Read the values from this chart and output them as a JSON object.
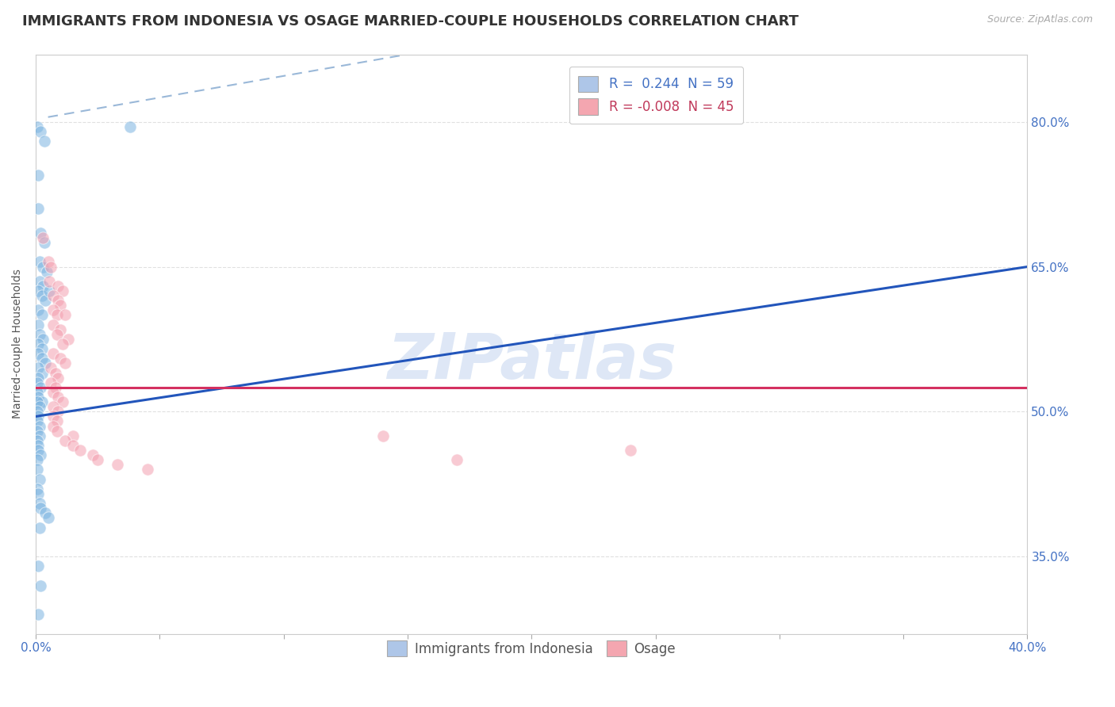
{
  "title": "IMMIGRANTS FROM INDONESIA VS OSAGE MARRIED-COUPLE HOUSEHOLDS CORRELATION CHART",
  "source_text": "Source: ZipAtlas.com",
  "ylabel_ticks": [
    35.0,
    50.0,
    65.0,
    80.0
  ],
  "ylabel_label": "Married-couple Households",
  "legend_entries": [
    {
      "label": "Immigrants from Indonesia",
      "color": "#aec6e8"
    },
    {
      "label": "Osage",
      "color": "#f4a6b0"
    }
  ],
  "legend_r_colors": [
    "#4472c4",
    "#c0395a"
  ],
  "blue_dots": [
    [
      0.05,
      79.5
    ],
    [
      0.2,
      79.0
    ],
    [
      0.35,
      78.0
    ],
    [
      0.1,
      74.5
    ],
    [
      0.1,
      71.0
    ],
    [
      0.2,
      68.5
    ],
    [
      0.35,
      67.5
    ],
    [
      0.15,
      65.5
    ],
    [
      0.3,
      65.0
    ],
    [
      0.45,
      64.5
    ],
    [
      0.15,
      63.5
    ],
    [
      0.3,
      63.0
    ],
    [
      0.1,
      62.5
    ],
    [
      0.25,
      62.0
    ],
    [
      0.4,
      61.5
    ],
    [
      0.55,
      62.5
    ],
    [
      0.1,
      60.5
    ],
    [
      0.25,
      60.0
    ],
    [
      0.1,
      59.0
    ],
    [
      0.15,
      58.0
    ],
    [
      0.3,
      57.5
    ],
    [
      0.1,
      57.0
    ],
    [
      0.25,
      56.5
    ],
    [
      0.1,
      56.0
    ],
    [
      0.25,
      55.5
    ],
    [
      0.4,
      55.0
    ],
    [
      0.1,
      54.5
    ],
    [
      0.25,
      54.0
    ],
    [
      0.1,
      53.5
    ],
    [
      0.05,
      53.0
    ],
    [
      0.2,
      52.5
    ],
    [
      0.05,
      52.0
    ],
    [
      0.1,
      51.5
    ],
    [
      0.25,
      51.0
    ],
    [
      0.05,
      51.0
    ],
    [
      0.15,
      50.5
    ],
    [
      0.05,
      50.0
    ],
    [
      0.1,
      49.5
    ],
    [
      0.05,
      49.0
    ],
    [
      0.15,
      48.5
    ],
    [
      0.05,
      48.0
    ],
    [
      0.15,
      47.5
    ],
    [
      0.05,
      47.0
    ],
    [
      0.1,
      46.5
    ],
    [
      0.1,
      46.0
    ],
    [
      0.2,
      45.5
    ],
    [
      0.05,
      45.0
    ],
    [
      0.05,
      44.0
    ],
    [
      0.15,
      43.0
    ],
    [
      0.05,
      42.0
    ],
    [
      0.1,
      41.5
    ],
    [
      0.15,
      40.5
    ],
    [
      0.2,
      40.0
    ],
    [
      0.4,
      39.5
    ],
    [
      0.5,
      39.0
    ],
    [
      0.15,
      38.0
    ],
    [
      0.1,
      34.0
    ],
    [
      0.2,
      32.0
    ],
    [
      0.1,
      29.0
    ],
    [
      3.8,
      79.5
    ]
  ],
  "pink_dots": [
    [
      0.3,
      68.0
    ],
    [
      0.5,
      65.5
    ],
    [
      0.6,
      65.0
    ],
    [
      0.55,
      63.5
    ],
    [
      0.9,
      63.0
    ],
    [
      1.1,
      62.5
    ],
    [
      0.7,
      62.0
    ],
    [
      0.9,
      61.5
    ],
    [
      1.0,
      61.0
    ],
    [
      0.7,
      60.5
    ],
    [
      0.85,
      60.0
    ],
    [
      1.2,
      60.0
    ],
    [
      0.7,
      59.0
    ],
    [
      1.0,
      58.5
    ],
    [
      0.85,
      58.0
    ],
    [
      1.3,
      57.5
    ],
    [
      1.1,
      57.0
    ],
    [
      0.7,
      56.0
    ],
    [
      1.0,
      55.5
    ],
    [
      1.2,
      55.0
    ],
    [
      0.6,
      54.5
    ],
    [
      0.8,
      54.0
    ],
    [
      0.9,
      53.5
    ],
    [
      0.6,
      53.0
    ],
    [
      0.8,
      52.5
    ],
    [
      0.7,
      52.0
    ],
    [
      0.9,
      51.5
    ],
    [
      1.1,
      51.0
    ],
    [
      0.7,
      50.5
    ],
    [
      0.9,
      50.0
    ],
    [
      0.7,
      49.5
    ],
    [
      0.85,
      49.0
    ],
    [
      0.7,
      48.5
    ],
    [
      0.85,
      48.0
    ],
    [
      1.5,
      47.5
    ],
    [
      1.2,
      47.0
    ],
    [
      1.5,
      46.5
    ],
    [
      1.8,
      46.0
    ],
    [
      2.3,
      45.5
    ],
    [
      2.5,
      45.0
    ],
    [
      3.3,
      44.5
    ],
    [
      4.5,
      44.0
    ],
    [
      17.0,
      45.0
    ],
    [
      24.0,
      46.0
    ],
    [
      14.0,
      47.5
    ]
  ],
  "blue_line_x": [
    0.0,
    40.0
  ],
  "blue_line_y": [
    49.5,
    65.0
  ],
  "pink_line_x": [
    0.0,
    40.0
  ],
  "pink_line_y": [
    52.5,
    52.5
  ],
  "dashed_line_x": [
    0.5,
    15.0
  ],
  "dashed_line_y": [
    80.5,
    87.0
  ],
  "xlim": [
    0.0,
    40.0
  ],
  "ylim": [
    27.0,
    87.0
  ],
  "background_color": "#ffffff",
  "dot_size": 120,
  "dot_alpha": 0.55,
  "blue_dot_color": "#7ab3e0",
  "pink_dot_color": "#f4a0b0",
  "blue_line_color": "#2255bb",
  "pink_line_color": "#d43060",
  "dashed_line_color": "#9ab8d8",
  "grid_color": "#e0e0e0",
  "grid_style": "--",
  "title_fontsize": 13,
  "axis_tick_fontsize": 11,
  "legend_fontsize": 12,
  "watermark_text": "ZIPatlas",
  "watermark_color": "#c8d8f0",
  "watermark_fontsize": 58
}
